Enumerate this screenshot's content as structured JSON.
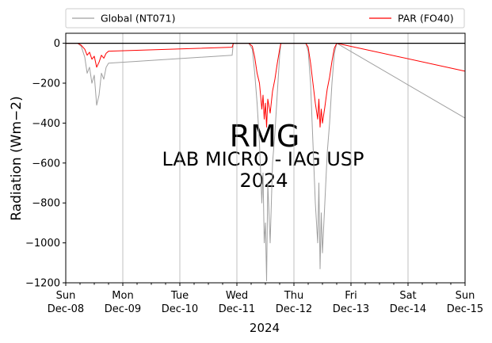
{
  "chart_data": {
    "type": "line",
    "title": "",
    "xlabel": "2024",
    "ylabel": "Radiation (Wm−2)",
    "ylim": [
      -1200,
      50
    ],
    "y_ticks": [
      0,
      -200,
      -400,
      -600,
      -800,
      -1000,
      -1200
    ],
    "x_domain": [
      "2024-12-08 00:00",
      "2024-12-15 00:00"
    ],
    "x_ticks": [
      {
        "day": "Sun",
        "date": "Dec-08"
      },
      {
        "day": "Mon",
        "date": "Dec-09"
      },
      {
        "day": "Tue",
        "date": "Dec-10"
      },
      {
        "day": "Wed",
        "date": "Dec-11"
      },
      {
        "day": "Thu",
        "date": "Dec-12"
      },
      {
        "day": "Fri",
        "date": "Dec-13"
      },
      {
        "day": "Sat",
        "date": "Dec-14"
      },
      {
        "day": "Sun",
        "date": "Dec-15"
      }
    ],
    "grid": "vertical",
    "zero_line": true,
    "legend_placement": "top, above plot",
    "watermark": [
      "RMG",
      "LAB MICRO - IAG USP",
      "2024"
    ],
    "series": [
      {
        "name": "Global (NT071)",
        "color": "#a0a0a0",
        "points": [
          [
            "2024-12-08 00:00",
            0
          ],
          [
            "2024-12-08 05:00",
            0
          ],
          [
            "2024-12-08 06:30",
            -15
          ],
          [
            "2024-12-08 08:00",
            -70
          ],
          [
            "2024-12-08 09:00",
            -150
          ],
          [
            "2024-12-08 10:00",
            -120
          ],
          [
            "2024-12-08 11:00",
            -200
          ],
          [
            "2024-12-08 12:00",
            -160
          ],
          [
            "2024-12-08 13:00",
            -310
          ],
          [
            "2024-12-08 14:00",
            -260
          ],
          [
            "2024-12-08 15:00",
            -150
          ],
          [
            "2024-12-08 16:00",
            -180
          ],
          [
            "2024-12-08 17:00",
            -120
          ],
          [
            "2024-12-08 18:00",
            -100
          ],
          [
            "2024-12-10 22:00",
            -60
          ],
          [
            "2024-12-10 22:30",
            0
          ],
          [
            "2024-12-11 05:00",
            0
          ],
          [
            "2024-12-11 06:30",
            -30
          ],
          [
            "2024-12-11 07:30",
            -150
          ],
          [
            "2024-12-11 08:30",
            -300
          ],
          [
            "2024-12-11 09:30",
            -500
          ],
          [
            "2024-12-11 10:30",
            -800
          ],
          [
            "2024-12-11 11:00",
            -650
          ],
          [
            "2024-12-11 11:30",
            -1000
          ],
          [
            "2024-12-11 12:00",
            -900
          ],
          [
            "2024-12-11 12:30",
            -1190
          ],
          [
            "2024-12-11 13:00",
            -700
          ],
          [
            "2024-12-11 14:00",
            -1000
          ],
          [
            "2024-12-11 15:00",
            -600
          ],
          [
            "2024-12-11 16:00",
            -450
          ],
          [
            "2024-12-11 17:00",
            -250
          ],
          [
            "2024-12-11 18:00",
            -60
          ],
          [
            "2024-12-11 18:30",
            0
          ],
          [
            "2024-12-12 05:00",
            0
          ],
          [
            "2024-12-12 06:00",
            -40
          ],
          [
            "2024-12-12 07:00",
            -200
          ],
          [
            "2024-12-12 08:00",
            -500
          ],
          [
            "2024-12-12 09:00",
            -800
          ],
          [
            "2024-12-12 10:00",
            -1000
          ],
          [
            "2024-12-12 10:30",
            -700
          ],
          [
            "2024-12-12 11:00",
            -1130
          ],
          [
            "2024-12-12 11:30",
            -850
          ],
          [
            "2024-12-12 12:00",
            -1050
          ],
          [
            "2024-12-12 13:00",
            -800
          ],
          [
            "2024-12-12 14:00",
            -550
          ],
          [
            "2024-12-12 15:00",
            -400
          ],
          [
            "2024-12-12 16:00",
            -200
          ],
          [
            "2024-12-12 17:00",
            -50
          ],
          [
            "2024-12-12 18:00",
            0
          ],
          [
            "2024-12-15 00:00",
            -375
          ]
        ]
      },
      {
        "name": "PAR (FO40)",
        "color": "#ff0000",
        "points": [
          [
            "2024-12-08 00:00",
            0
          ],
          [
            "2024-12-08 05:00",
            0
          ],
          [
            "2024-12-08 06:30",
            -10
          ],
          [
            "2024-12-08 08:00",
            -30
          ],
          [
            "2024-12-08 09:00",
            -60
          ],
          [
            "2024-12-08 10:00",
            -45
          ],
          [
            "2024-12-08 11:00",
            -80
          ],
          [
            "2024-12-08 12:00",
            -65
          ],
          [
            "2024-12-08 13:00",
            -120
          ],
          [
            "2024-12-08 14:00",
            -95
          ],
          [
            "2024-12-08 15:00",
            -60
          ],
          [
            "2024-12-08 16:00",
            -75
          ],
          [
            "2024-12-08 17:00",
            -50
          ],
          [
            "2024-12-08 18:00",
            -40
          ],
          [
            "2024-12-10 22:00",
            -20
          ],
          [
            "2024-12-10 22:30",
            0
          ],
          [
            "2024-12-11 05:00",
            0
          ],
          [
            "2024-12-11 06:30",
            -15
          ],
          [
            "2024-12-11 07:30",
            -70
          ],
          [
            "2024-12-11 08:30",
            -150
          ],
          [
            "2024-12-11 09:30",
            -200
          ],
          [
            "2024-12-11 10:30",
            -330
          ],
          [
            "2024-12-11 11:00",
            -260
          ],
          [
            "2024-12-11 11:30",
            -380
          ],
          [
            "2024-12-11 12:00",
            -300
          ],
          [
            "2024-12-11 12:30",
            -420
          ],
          [
            "2024-12-11 13:00",
            -280
          ],
          [
            "2024-12-11 14:00",
            -350
          ],
          [
            "2024-12-11 15:00",
            -240
          ],
          [
            "2024-12-11 16:00",
            -180
          ],
          [
            "2024-12-11 17:00",
            -100
          ],
          [
            "2024-12-11 18:00",
            -30
          ],
          [
            "2024-12-11 18:30",
            0
          ],
          [
            "2024-12-12 05:00",
            0
          ],
          [
            "2024-12-12 06:00",
            -20
          ],
          [
            "2024-12-12 07:00",
            -100
          ],
          [
            "2024-12-12 08:00",
            -200
          ],
          [
            "2024-12-12 09:00",
            -300
          ],
          [
            "2024-12-12 10:00",
            -380
          ],
          [
            "2024-12-12 10:30",
            -280
          ],
          [
            "2024-12-12 11:00",
            -420
          ],
          [
            "2024-12-12 11:30",
            -330
          ],
          [
            "2024-12-12 12:00",
            -400
          ],
          [
            "2024-12-12 13:00",
            -320
          ],
          [
            "2024-12-12 14:00",
            -230
          ],
          [
            "2024-12-12 15:00",
            -170
          ],
          [
            "2024-12-12 16:00",
            -90
          ],
          [
            "2024-12-12 17:00",
            -25
          ],
          [
            "2024-12-12 18:00",
            0
          ],
          [
            "2024-12-15 00:00",
            -140
          ]
        ]
      }
    ]
  }
}
